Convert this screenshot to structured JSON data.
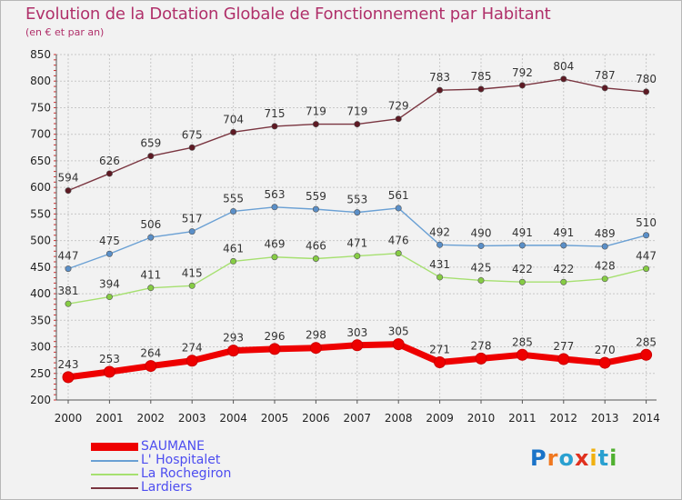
{
  "header": {
    "title": "Evolution de la Dotation Globale de Fonctionnement par Habitant",
    "subtitle": "(en € et par an)"
  },
  "chart_data": {
    "type": "line",
    "title": "Evolution de la Dotation Globale de Fonctionnement par Habitant",
    "subtitle": "(en € et par an)",
    "xlabel": "",
    "ylabel": "",
    "ylim": [
      200,
      850
    ],
    "yticks": [
      200,
      250,
      300,
      350,
      400,
      450,
      500,
      550,
      600,
      650,
      700,
      750,
      800,
      850
    ],
    "grid": true,
    "legend_position": "bottom-left",
    "x": [
      "2000",
      "2001",
      "2002",
      "2003",
      "2004",
      "2005",
      "2006",
      "2007",
      "2008",
      "2009",
      "2010",
      "2011",
      "2012",
      "2013",
      "2014"
    ],
    "series": [
      {
        "name": "SAUMANE",
        "color": "#ee0000",
        "marker": "#ee0000",
        "values": [
          243,
          253,
          264,
          274,
          293,
          296,
          298,
          303,
          305,
          271,
          278,
          285,
          277,
          270,
          285
        ]
      },
      {
        "name": "L' Hospitalet",
        "color": "#6aa0d4",
        "marker": "#5a8fc8",
        "values": [
          447,
          475,
          506,
          517,
          555,
          563,
          559,
          553,
          561,
          492,
          490,
          491,
          491,
          489,
          510
        ]
      },
      {
        "name": "La Rochegiron",
        "color": "#a6e070",
        "marker": "#86cc44",
        "values": [
          381,
          394,
          411,
          415,
          461,
          469,
          466,
          471,
          476,
          431,
          425,
          422,
          422,
          428,
          447
        ]
      },
      {
        "name": "Lardiers",
        "color": "#7a3540",
        "marker": "#5e1a24",
        "values": [
          594,
          626,
          659,
          675,
          704,
          715,
          719,
          719,
          729,
          783,
          785,
          792,
          804,
          787,
          780
        ]
      }
    ]
  },
  "branding": {
    "letters": [
      "P",
      "r",
      "o",
      "x",
      "i",
      "t",
      "i"
    ],
    "colors": [
      "#1a73c8",
      "#f07820",
      "#2aa0d0",
      "#e0301e",
      "#f0b010",
      "#2aa0d0",
      "#50b030"
    ]
  }
}
